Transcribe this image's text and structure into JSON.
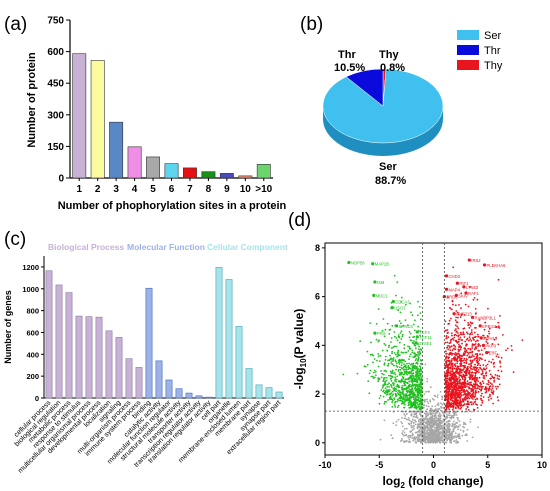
{
  "colors": {
    "ser": "#3fc0ee",
    "thr": "#0a0adc",
    "thy": "#e8141e",
    "bp": "#c7b2d6",
    "mf": "#9fb2e6",
    "cc": "#a7e3ea",
    "up": "#e8141e",
    "down": "#1fc01f",
    "ns": "#a6a6a6"
  },
  "chart_data": [
    {
      "panel": "(a)",
      "type": "bar",
      "categories": [
        "1",
        "2",
        "3",
        "4",
        "5",
        "6",
        "7",
        "8",
        "9",
        "10",
        ">10"
      ],
      "values": [
        590,
        558,
        265,
        148,
        100,
        68,
        48,
        30,
        22,
        10,
        65
      ],
      "bar_colors": [
        "#c7b2d6",
        "#fbfb9e",
        "#5a87c5",
        "#ef8ee4",
        "#a8a8a8",
        "#5fd4ef",
        "#e60f14",
        "#1b8f1b",
        "#4b4bbf",
        "#f08a6d",
        "#6cd46c"
      ],
      "xlabel": "Number of phophorylation sites in a protein",
      "ylabel": "Number of protein",
      "ylim": [
        0,
        750
      ],
      "yticks": [
        0,
        150,
        300,
        450,
        600,
        750
      ],
      "grid": false
    },
    {
      "panel": "(b)",
      "type": "pie",
      "labels": [
        "Ser",
        "Thr",
        "Thy"
      ],
      "values": [
        88.7,
        10.5,
        0.8
      ],
      "slice_labels": [
        {
          "name": "Ser",
          "pct": "88.7%"
        },
        {
          "name": "Thr",
          "pct": "10.5%"
        },
        {
          "name": "Thy",
          "pct": "0.8%"
        }
      ],
      "legend": [
        "Ser",
        "Thr",
        "Thy"
      ],
      "legend_position": "right"
    },
    {
      "panel": "(c)",
      "type": "bar",
      "group_labels": [
        "Biological Process",
        "Molecular Function",
        "Cellular Component"
      ],
      "categories": [
        "cellular process",
        "biological regulation",
        "metabolic process",
        "response to stimulus",
        "multicellular organismal process",
        "developmental process",
        "localization",
        "signaling",
        "multi-organism process",
        "immune system process",
        "binding",
        "catalytic activity",
        "molecular function regulator",
        "structural molecule activity",
        "transporter activity",
        "transcription regulator activity",
        "translation regulator activity",
        "cell part",
        "organelle",
        "membrane-enclosed lumen",
        "membrane part",
        "synapse",
        "synapse part",
        "extracellular region part"
      ],
      "values": [
        1165,
        1035,
        965,
        750,
        745,
        740,
        615,
        555,
        360,
        280,
        1005,
        340,
        165,
        85,
        45,
        20,
        8,
        1195,
        1085,
        655,
        270,
        120,
        95,
        55
      ],
      "groups": [
        "bp",
        "bp",
        "bp",
        "bp",
        "bp",
        "bp",
        "bp",
        "bp",
        "bp",
        "bp",
        "mf",
        "mf",
        "mf",
        "mf",
        "mf",
        "mf",
        "mf",
        "cc",
        "cc",
        "cc",
        "cc",
        "cc",
        "cc",
        "cc"
      ],
      "ylabel": "Number of genes",
      "ylim": [
        0,
        1300
      ],
      "yticks": [
        0,
        200,
        400,
        600,
        800,
        1000,
        1200
      ]
    },
    {
      "panel": "(d)",
      "type": "scatter",
      "xlabel_main": "log",
      "xlabel_sub": "2",
      "xlabel_rest": " (fold change)",
      "ylabel_main": "-log",
      "ylabel_sub": "10",
      "ylabel_rest": "(P value)",
      "xlim": [
        -10,
        10
      ],
      "ylim": [
        -0.5,
        8.2
      ],
      "xticks": [
        -10,
        -5,
        0,
        5,
        10
      ],
      "yticks": [
        0,
        2,
        4,
        6,
        8
      ],
      "thresholds": {
        "x": [
          -1,
          1
        ],
        "y": 1.3
      },
      "cloud_counts": {
        "down": 900,
        "up": 1300,
        "ns": 1100
      },
      "labeled_down": [
        {
          "label": "NOP58",
          "x": -7.8,
          "y": 7.4
        },
        {
          "label": "MAP1B",
          "x": -5.6,
          "y": 7.35
        },
        {
          "label": "ISM",
          "x": -5.4,
          "y": 6.6
        },
        {
          "label": "MDC1",
          "x": -5.5,
          "y": 6.05
        },
        {
          "label": "CDCA3",
          "x": -3.7,
          "y": 5.8
        },
        {
          "label": "USO1",
          "x": -3.8,
          "y": 5.55
        },
        {
          "label": "CYND3",
          "x": -3.4,
          "y": 4.8
        },
        {
          "label": "PRX",
          "x": -5.4,
          "y": 4.5
        },
        {
          "label": "TCF4",
          "x": -1.5,
          "y": 4.55
        },
        {
          "label": "TCF11",
          "x": -1.5,
          "y": 4.35
        },
        {
          "label": "GTSE1",
          "x": -1.6,
          "y": 4.1
        }
      ],
      "labeled_up": [
        {
          "label": "IRS2",
          "x": 3.3,
          "y": 7.5
        },
        {
          "label": "PLEKHA6",
          "x": 4.7,
          "y": 7.3
        },
        {
          "label": "CHD3",
          "x": 1.2,
          "y": 6.85
        },
        {
          "label": "RIF1",
          "x": 2.2,
          "y": 6.55
        },
        {
          "label": "LTN53",
          "x": 2.8,
          "y": 6.4
        },
        {
          "label": "MAP4",
          "x": 1.2,
          "y": 6.3
        },
        {
          "label": "RAF1",
          "x": 3.0,
          "y": 6.15
        },
        {
          "label": "SKIV",
          "x": 2.1,
          "y": 6.05
        },
        {
          "label": "BRD8",
          "x": 1.0,
          "y": 6.0
        },
        {
          "label": "RNF213",
          "x": 1.9,
          "y": 5.3
        },
        {
          "label": "RANBP3L1",
          "x": 3.6,
          "y": 5.15
        },
        {
          "label": "EPB41L3",
          "x": 4.3,
          "y": 4.8
        },
        {
          "label": "MYH14",
          "x": 4.4,
          "y": 4.3
        },
        {
          "label": "PKP3",
          "x": 4.6,
          "y": 4.0
        },
        {
          "label": "ERF",
          "x": 4.9,
          "y": 3.7
        }
      ]
    }
  ]
}
